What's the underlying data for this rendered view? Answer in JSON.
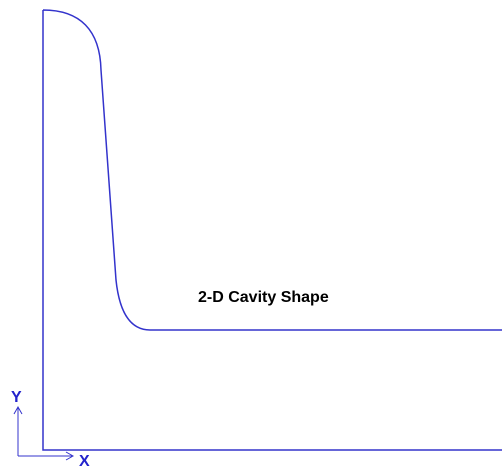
{
  "diagram": {
    "label": "2-D Cavity Shape",
    "axes": {
      "y": "Y",
      "x": "X"
    }
  }
}
